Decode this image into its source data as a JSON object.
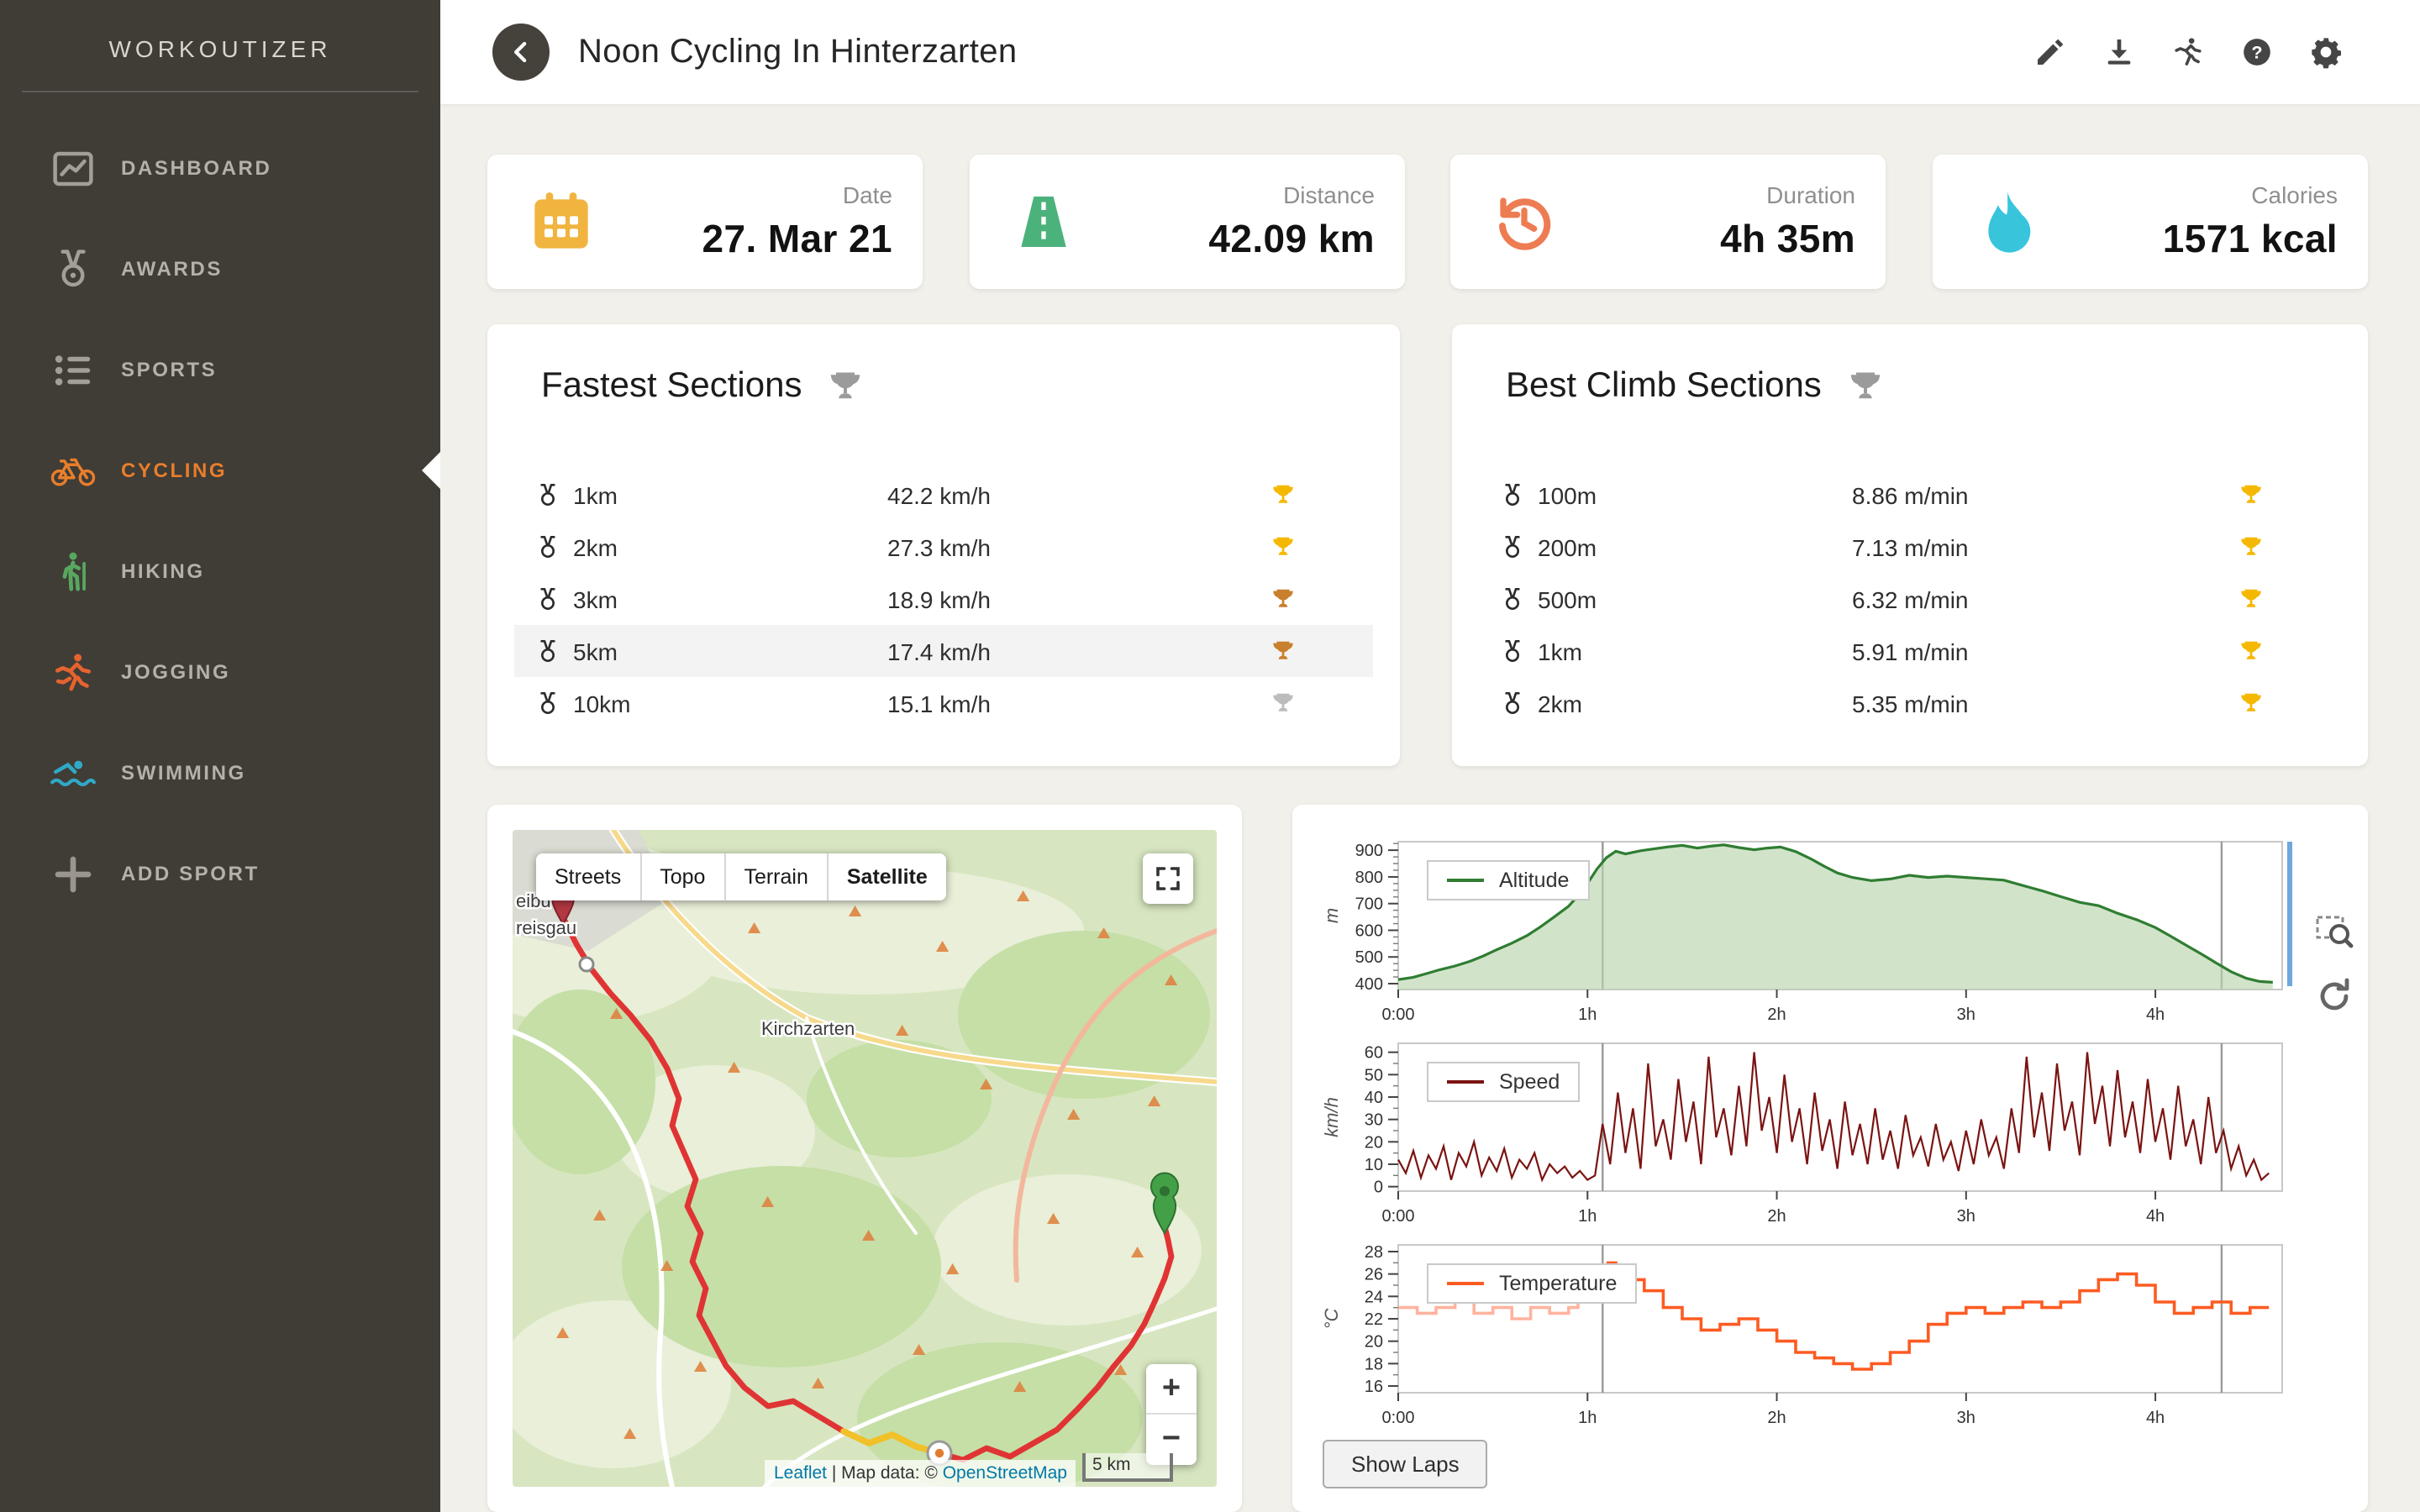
{
  "app_title": "WORKOUTIZER",
  "sidebar": {
    "items": [
      {
        "label": "DASHBOARD",
        "icon": "dashboard-icon",
        "icon_color": "#a39e96",
        "label_color": "#b5b0a8"
      },
      {
        "label": "AWARDS",
        "icon": "medal-icon",
        "icon_color": "#a39e96",
        "label_color": "#b5b0a8"
      },
      {
        "label": "SPORTS",
        "icon": "list-icon",
        "icon_color": "#a39e96",
        "label_color": "#b5b0a8"
      },
      {
        "label": "CYCLING",
        "icon": "bicycle-icon",
        "icon_color": "#e87e2b",
        "label_color": "#e87e2b",
        "active": true
      },
      {
        "label": "HIKING",
        "icon": "hiker-icon",
        "icon_color": "#57a75f",
        "label_color": "#b5b0a8"
      },
      {
        "label": "JOGGING",
        "icon": "runner-icon",
        "icon_color": "#e4632e",
        "label_color": "#b5b0a8"
      },
      {
        "label": "SWIMMING",
        "icon": "swimmer-icon",
        "icon_color": "#2fa9c6",
        "label_color": "#b5b0a8"
      },
      {
        "label": "ADD SPORT",
        "icon": "plus-icon",
        "icon_color": "#9a958d",
        "label_color": "#b5b0a8"
      }
    ]
  },
  "header": {
    "title": "Noon Cycling In Hinterzarten",
    "icons": [
      "edit-icon",
      "download-icon",
      "activity-icon",
      "help-icon",
      "settings-icon"
    ]
  },
  "stats": [
    {
      "label": "Date",
      "value": "27. Mar 21",
      "icon": "calendar-icon",
      "color": "#f0b43f"
    },
    {
      "label": "Distance",
      "value": "42.09 km",
      "icon": "road-icon",
      "color": "#4bb27b"
    },
    {
      "label": "Duration",
      "value": "4h 35m",
      "icon": "history-clock-icon",
      "color": "#ee7c52"
    },
    {
      "label": "Calories",
      "value": "1571 kcal",
      "icon": "flame-icon",
      "color": "#38c5dc"
    }
  ],
  "trophy_colors": {
    "gold": "#f5b800",
    "silver": "#bcbcbc",
    "bronze": "#c9802e",
    "title": "#9b9b9b"
  },
  "fastest_sections": {
    "title": "Fastest Sections",
    "title_trophy": "title",
    "rows": [
      {
        "distance": "1km",
        "value": "42.2 km/h",
        "trophy": "gold"
      },
      {
        "distance": "2km",
        "value": "27.3 km/h",
        "trophy": "gold"
      },
      {
        "distance": "3km",
        "value": "18.9 km/h",
        "trophy": "bronze"
      },
      {
        "distance": "5km",
        "value": "17.4 km/h",
        "trophy": "bronze",
        "highlighted": true
      },
      {
        "distance": "10km",
        "value": "15.1 km/h",
        "trophy": "silver"
      }
    ]
  },
  "best_climb_sections": {
    "title": "Best Climb Sections",
    "title_trophy": "title",
    "rows": [
      {
        "distance": "100m",
        "value": "8.86 m/min",
        "trophy": "gold"
      },
      {
        "distance": "200m",
        "value": "7.13 m/min",
        "trophy": "gold"
      },
      {
        "distance": "500m",
        "value": "6.32 m/min",
        "trophy": "gold"
      },
      {
        "distance": "1km",
        "value": "5.91 m/min",
        "trophy": "gold"
      },
      {
        "distance": "2km",
        "value": "5.35 m/min",
        "trophy": "gold"
      }
    ]
  },
  "map": {
    "layer_buttons": [
      {
        "label": "Streets",
        "active": false
      },
      {
        "label": "Topo",
        "active": false
      },
      {
        "label": "Terrain",
        "active": false
      },
      {
        "label": "Satellite",
        "active": true
      }
    ],
    "place_labels": [
      {
        "text": "Kirchzarten"
      },
      {
        "text": "eibu"
      },
      {
        "text": "reisgau"
      }
    ],
    "attribution": {
      "prefix": "Leaflet",
      "middle": " | Map data: © ",
      "link": "OpenStreetMap"
    },
    "scale_label": "5 km",
    "zoom_in_label": "+",
    "zoom_out_label": "−",
    "route_color": "#e03434",
    "highlight_color": "#f2c029"
  },
  "charts_panel": {
    "show_laps_label": "Show Laps",
    "tools": [
      "zoom-selection-icon",
      "reset-zoom-icon"
    ]
  },
  "chart_data": [
    {
      "name": "altitude",
      "type": "area",
      "label": "Altitude",
      "unit": "m",
      "color": "#2f7d32",
      "fill": "#b9d6ae",
      "lw": 1.6,
      "xlim": [
        0,
        4.67
      ],
      "ylim": [
        378,
        932
      ],
      "yticks": [
        400,
        500,
        600,
        700,
        800,
        900
      ],
      "yminor": 25,
      "xticks": [
        {
          "t": 0,
          "label": "0:00"
        },
        {
          "t": 1,
          "label": "1h"
        },
        {
          "t": 2,
          "label": "2h"
        },
        {
          "t": 3,
          "label": "3h"
        },
        {
          "t": 4,
          "label": "4h"
        }
      ],
      "cursors": [
        1.08,
        4.35
      ],
      "points": [
        [
          0,
          415
        ],
        [
          0.08,
          424
        ],
        [
          0.15,
          438
        ],
        [
          0.22,
          452
        ],
        [
          0.3,
          466
        ],
        [
          0.38,
          484
        ],
        [
          0.45,
          504
        ],
        [
          0.52,
          527
        ],
        [
          0.6,
          552
        ],
        [
          0.68,
          580
        ],
        [
          0.75,
          612
        ],
        [
          0.82,
          648
        ],
        [
          0.9,
          690
        ],
        [
          0.95,
          730
        ],
        [
          1,
          775
        ],
        [
          1.05,
          830
        ],
        [
          1.1,
          872
        ],
        [
          1.15,
          896
        ],
        [
          1.2,
          886
        ],
        [
          1.28,
          898
        ],
        [
          1.35,
          905
        ],
        [
          1.42,
          912
        ],
        [
          1.5,
          918
        ],
        [
          1.58,
          908
        ],
        [
          1.65,
          915
        ],
        [
          1.72,
          920
        ],
        [
          1.8,
          910
        ],
        [
          1.88,
          902
        ],
        [
          1.95,
          908
        ],
        [
          2.02,
          912
        ],
        [
          2.1,
          895
        ],
        [
          2.18,
          868
        ],
        [
          2.25,
          840
        ],
        [
          2.32,
          815
        ],
        [
          2.4,
          798
        ],
        [
          2.5,
          786
        ],
        [
          2.6,
          792
        ],
        [
          2.7,
          806
        ],
        [
          2.8,
          798
        ],
        [
          2.9,
          803
        ],
        [
          3,
          798
        ],
        [
          3.1,
          793
        ],
        [
          3.2,
          788
        ],
        [
          3.3,
          768
        ],
        [
          3.4,
          748
        ],
        [
          3.5,
          726
        ],
        [
          3.6,
          705
        ],
        [
          3.7,
          692
        ],
        [
          3.8,
          664
        ],
        [
          3.9,
          640
        ],
        [
          4,
          610
        ],
        [
          4.08,
          578
        ],
        [
          4.16,
          545
        ],
        [
          4.24,
          512
        ],
        [
          4.32,
          478
        ],
        [
          4.4,
          445
        ],
        [
          4.48,
          420
        ],
        [
          4.55,
          408
        ],
        [
          4.62,
          405
        ]
      ]
    },
    {
      "name": "speed",
      "type": "line",
      "label": "Speed",
      "unit": "km/h",
      "color": "#7a1412",
      "lw": 1.1,
      "xlim": [
        0,
        4.67
      ],
      "ylim": [
        -2,
        64
      ],
      "yticks": [
        0,
        10,
        20,
        30,
        40,
        50,
        60
      ],
      "yminor": 5,
      "xticks": [
        {
          "t": 0,
          "label": "0:00"
        },
        {
          "t": 1,
          "label": "1h"
        },
        {
          "t": 2,
          "label": "2h"
        },
        {
          "t": 3,
          "label": "3h"
        },
        {
          "t": 4,
          "label": "4h"
        }
      ],
      "cursors": [
        1.08,
        4.35
      ],
      "points": [
        [
          0,
          12
        ],
        [
          0.04,
          6
        ],
        [
          0.08,
          16
        ],
        [
          0.12,
          4
        ],
        [
          0.16,
          14
        ],
        [
          0.2,
          8
        ],
        [
          0.24,
          18
        ],
        [
          0.28,
          3
        ],
        [
          0.32,
          15
        ],
        [
          0.36,
          9
        ],
        [
          0.4,
          20
        ],
        [
          0.44,
          5
        ],
        [
          0.48,
          13
        ],
        [
          0.52,
          7
        ],
        [
          0.56,
          17
        ],
        [
          0.6,
          4
        ],
        [
          0.64,
          12
        ],
        [
          0.68,
          8
        ],
        [
          0.72,
          15
        ],
        [
          0.76,
          3
        ],
        [
          0.8,
          10
        ],
        [
          0.84,
          6
        ],
        [
          0.88,
          9
        ],
        [
          0.92,
          4
        ],
        [
          0.96,
          7
        ],
        [
          1,
          3
        ],
        [
          1.04,
          5
        ],
        [
          1.08,
          28
        ],
        [
          1.12,
          10
        ],
        [
          1.16,
          42
        ],
        [
          1.2,
          15
        ],
        [
          1.24,
          35
        ],
        [
          1.28,
          8
        ],
        [
          1.32,
          55
        ],
        [
          1.36,
          18
        ],
        [
          1.4,
          30
        ],
        [
          1.44,
          12
        ],
        [
          1.48,
          48
        ],
        [
          1.52,
          20
        ],
        [
          1.56,
          38
        ],
        [
          1.6,
          10
        ],
        [
          1.64,
          58
        ],
        [
          1.68,
          22
        ],
        [
          1.72,
          35
        ],
        [
          1.76,
          14
        ],
        [
          1.8,
          45
        ],
        [
          1.84,
          18
        ],
        [
          1.88,
          60
        ],
        [
          1.92,
          25
        ],
        [
          1.96,
          40
        ],
        [
          2,
          15
        ],
        [
          2.04,
          50
        ],
        [
          2.08,
          20
        ],
        [
          2.12,
          35
        ],
        [
          2.16,
          10
        ],
        [
          2.2,
          42
        ],
        [
          2.24,
          16
        ],
        [
          2.28,
          30
        ],
        [
          2.32,
          8
        ],
        [
          2.36,
          38
        ],
        [
          2.4,
          14
        ],
        [
          2.44,
          28
        ],
        [
          2.48,
          10
        ],
        [
          2.52,
          35
        ],
        [
          2.56,
          12
        ],
        [
          2.6,
          25
        ],
        [
          2.64,
          8
        ],
        [
          2.68,
          32
        ],
        [
          2.72,
          14
        ],
        [
          2.76,
          22
        ],
        [
          2.8,
          9
        ],
        [
          2.84,
          28
        ],
        [
          2.88,
          12
        ],
        [
          2.92,
          20
        ],
        [
          2.96,
          7
        ],
        [
          3,
          25
        ],
        [
          3.04,
          10
        ],
        [
          3.08,
          30
        ],
        [
          3.12,
          14
        ],
        [
          3.16,
          22
        ],
        [
          3.2,
          8
        ],
        [
          3.24,
          35
        ],
        [
          3.28,
          15
        ],
        [
          3.32,
          58
        ],
        [
          3.36,
          22
        ],
        [
          3.4,
          42
        ],
        [
          3.44,
          16
        ],
        [
          3.48,
          55
        ],
        [
          3.52,
          25
        ],
        [
          3.56,
          38
        ],
        [
          3.6,
          14
        ],
        [
          3.64,
          60
        ],
        [
          3.68,
          28
        ],
        [
          3.72,
          45
        ],
        [
          3.76,
          18
        ],
        [
          3.8,
          52
        ],
        [
          3.84,
          22
        ],
        [
          3.88,
          38
        ],
        [
          3.92,
          15
        ],
        [
          3.96,
          48
        ],
        [
          4,
          20
        ],
        [
          4.04,
          35
        ],
        [
          4.08,
          12
        ],
        [
          4.12,
          45
        ],
        [
          4.16,
          18
        ],
        [
          4.2,
          30
        ],
        [
          4.24,
          10
        ],
        [
          4.28,
          40
        ],
        [
          4.32,
          15
        ],
        [
          4.36,
          25
        ],
        [
          4.4,
          8
        ],
        [
          4.44,
          18
        ],
        [
          4.48,
          5
        ],
        [
          4.52,
          12
        ],
        [
          4.56,
          3
        ],
        [
          4.6,
          6
        ]
      ]
    },
    {
      "name": "temperature",
      "type": "step",
      "label": "Temperature",
      "unit": "°C",
      "color": "#fd5b22",
      "color_pre": "#ffb39e",
      "split": 1.08,
      "lw": 1.8,
      "xlim": [
        0,
        4.67
      ],
      "ylim": [
        15.4,
        28.6
      ],
      "yticks": [
        16,
        18,
        20,
        22,
        24,
        26,
        28
      ],
      "yminor": 1,
      "xticks": [
        {
          "t": 0,
          "label": "0:00"
        },
        {
          "t": 1,
          "label": "1h"
        },
        {
          "t": 2,
          "label": "2h"
        },
        {
          "t": 3,
          "label": "3h"
        },
        {
          "t": 4,
          "label": "4h"
        }
      ],
      "cursors": [
        1.08,
        4.35
      ],
      "points": [
        [
          0,
          23
        ],
        [
          0.1,
          22.5
        ],
        [
          0.2,
          23
        ],
        [
          0.3,
          23.5
        ],
        [
          0.4,
          22.5
        ],
        [
          0.5,
          23
        ],
        [
          0.6,
          22
        ],
        [
          0.7,
          23
        ],
        [
          0.8,
          22.5
        ],
        [
          0.9,
          23
        ],
        [
          0.95,
          23.5
        ],
        [
          1,
          24
        ],
        [
          1.05,
          25
        ],
        [
          1.1,
          27
        ],
        [
          1.15,
          26.5
        ],
        [
          1.2,
          25.5
        ],
        [
          1.3,
          24.5
        ],
        [
          1.4,
          23
        ],
        [
          1.5,
          22
        ],
        [
          1.6,
          21
        ],
        [
          1.7,
          21.5
        ],
        [
          1.8,
          22
        ],
        [
          1.9,
          21
        ],
        [
          2,
          20
        ],
        [
          2.1,
          19
        ],
        [
          2.2,
          18.5
        ],
        [
          2.3,
          18
        ],
        [
          2.4,
          17.5
        ],
        [
          2.5,
          18
        ],
        [
          2.6,
          19
        ],
        [
          2.7,
          20
        ],
        [
          2.8,
          21.5
        ],
        [
          2.9,
          22.5
        ],
        [
          3,
          23
        ],
        [
          3.1,
          22.5
        ],
        [
          3.2,
          23
        ],
        [
          3.3,
          23.5
        ],
        [
          3.4,
          23
        ],
        [
          3.5,
          23.5
        ],
        [
          3.6,
          24.5
        ],
        [
          3.7,
          25.5
        ],
        [
          3.8,
          26
        ],
        [
          3.9,
          25
        ],
        [
          4,
          23.5
        ],
        [
          4.1,
          22.5
        ],
        [
          4.2,
          23
        ],
        [
          4.3,
          23.5
        ],
        [
          4.4,
          22.5
        ],
        [
          4.5,
          23
        ],
        [
          4.6,
          23
        ]
      ]
    }
  ]
}
